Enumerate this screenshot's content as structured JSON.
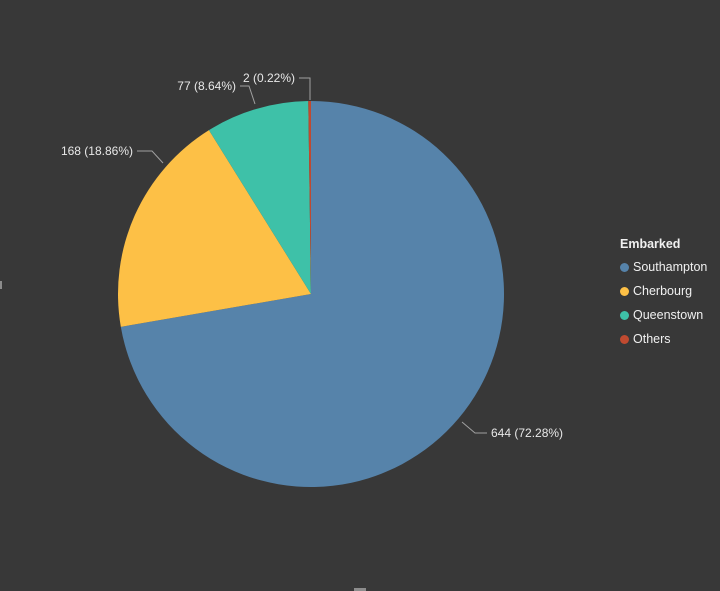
{
  "chart_data": {
    "type": "pie",
    "legend_title": "Embarked",
    "legend_position": "right",
    "slices": [
      {
        "name": "Southampton",
        "value": 644,
        "label": "644 (72.28%)",
        "color": "#5683aa"
      },
      {
        "name": "Cherbourg",
        "value": 168,
        "label": "168 (18.86%)",
        "color": "#fdc046"
      },
      {
        "name": "Queenstown",
        "value": 77,
        "label": "77 (8.64%)",
        "color": "#3ec1a8"
      },
      {
        "name": "Others",
        "value": 2,
        "label": "2 (0.22%)",
        "color": "#c04a30"
      }
    ]
  }
}
